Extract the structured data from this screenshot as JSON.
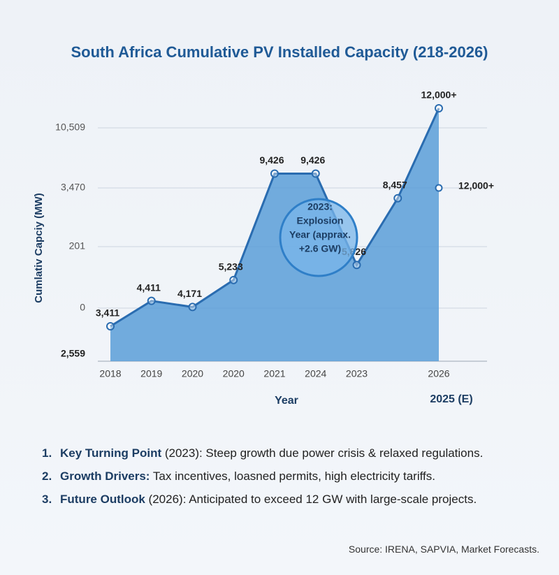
{
  "chart_data": {
    "type": "area",
    "title": "South Africa Cumulative PV Installed Capacity (218-2026)",
    "y_label": "Cumlativ Capciy (MW)",
    "x_label": "Year",
    "x_note": "2025 (E)",
    "y_axis_labels": [
      "10,509",
      "3,470",
      "201",
      "0",
      "2,559"
    ],
    "categories": [
      "2018",
      "2019",
      "2020",
      "2020",
      "2021",
      "2024",
      "2023",
      null,
      "2026"
    ],
    "values": [
      3411,
      4411,
      4171,
      5233,
      9426,
      9426,
      5826,
      8457,
      12000
    ],
    "value_labels": [
      "3,411",
      "4,411",
      "4,171",
      "5,233",
      "9,426",
      "9,426",
      "5,826",
      "8,457",
      "12,000+"
    ],
    "side_label": "12,000+",
    "callout": [
      "2023:",
      "Explosion",
      "Year (apprax.",
      "+2.6 GW)"
    ],
    "color": "#5b9ed8",
    "line_color": "#2a6cb0",
    "grid": true
  },
  "notes": [
    {
      "number": "1.",
      "bold": "Key Turning Point",
      "text": " (2023): Steep growth due power crisis & relaxed regulations."
    },
    {
      "number": "2.",
      "bold": "Growth Drivers:",
      "text": " Tax incentives,  loasned permits,  high electricity tariffs."
    },
    {
      "number": "3.",
      "bold": "Future Outlook",
      "text": " (2026): Anticipated to exceed 12 GW with large-scale projects."
    }
  ],
  "source": "Source: IRENA, SAPVIA, Market Forecasts."
}
